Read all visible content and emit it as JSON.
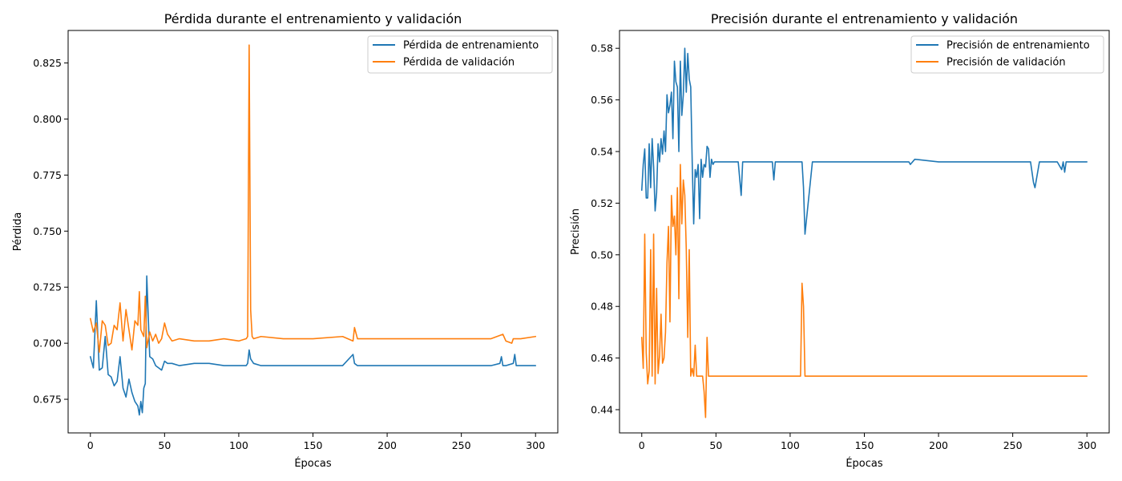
{
  "chart_data": [
    {
      "type": "line",
      "title": "Pérdida durante el entrenamiento y validación",
      "xlabel": "Épocas",
      "ylabel": "Pérdida",
      "xlim": [
        -15,
        315
      ],
      "ylim": [
        0.66,
        0.8395
      ],
      "xticks": [
        0,
        50,
        100,
        150,
        200,
        250,
        300
      ],
      "yticks": [
        0.675,
        0.7,
        0.725,
        0.75,
        0.775,
        0.8,
        0.825
      ],
      "ytick_labels": [
        "0.675",
        "0.700",
        "0.725",
        "0.750",
        "0.775",
        "0.800",
        "0.825"
      ],
      "legend_position": "upper right",
      "series": [
        {
          "name": "Pérdida de entrenamiento",
          "color": "#1f77b4",
          "x": [
            0,
            2,
            4,
            6,
            8,
            10,
            12,
            14,
            16,
            18,
            20,
            22,
            24,
            26,
            28,
            30,
            32,
            33,
            34,
            35,
            36,
            37,
            38,
            40,
            42,
            44,
            46,
            48,
            50,
            52,
            55,
            60,
            70,
            80,
            90,
            100,
            105,
            106,
            107,
            108,
            110,
            115,
            130,
            150,
            170,
            177,
            178,
            180,
            200,
            250,
            260,
            270,
            276,
            277,
            278,
            280,
            285,
            286,
            287,
            290,
            300
          ],
          "y": [
            0.694,
            0.689,
            0.719,
            0.688,
            0.689,
            0.703,
            0.686,
            0.685,
            0.681,
            0.683,
            0.694,
            0.68,
            0.676,
            0.684,
            0.678,
            0.674,
            0.672,
            0.668,
            0.674,
            0.669,
            0.68,
            0.682,
            0.73,
            0.694,
            0.693,
            0.69,
            0.689,
            0.688,
            0.692,
            0.691,
            0.691,
            0.69,
            0.691,
            0.691,
            0.69,
            0.69,
            0.69,
            0.691,
            0.697,
            0.693,
            0.691,
            0.69,
            0.69,
            0.69,
            0.69,
            0.695,
            0.691,
            0.69,
            0.69,
            0.69,
            0.69,
            0.69,
            0.691,
            0.694,
            0.69,
            0.69,
            0.691,
            0.695,
            0.69,
            0.69,
            0.69
          ]
        },
        {
          "name": "Pérdida de validación",
          "color": "#ff7f0e",
          "x": [
            0,
            2,
            4,
            6,
            8,
            10,
            12,
            14,
            16,
            18,
            20,
            22,
            24,
            26,
            28,
            30,
            32,
            33,
            34,
            36,
            37,
            38,
            40,
            42,
            44,
            46,
            48,
            50,
            52,
            55,
            60,
            70,
            80,
            90,
            100,
            105,
            106,
            107,
            108,
            109,
            110,
            115,
            130,
            150,
            170,
            177,
            178,
            180,
            200,
            250,
            270,
            278,
            280,
            284,
            285,
            290,
            300
          ],
          "y": [
            0.711,
            0.705,
            0.709,
            0.696,
            0.71,
            0.708,
            0.699,
            0.7,
            0.708,
            0.706,
            0.718,
            0.701,
            0.715,
            0.706,
            0.697,
            0.71,
            0.708,
            0.723,
            0.706,
            0.703,
            0.721,
            0.698,
            0.705,
            0.701,
            0.704,
            0.7,
            0.702,
            0.709,
            0.704,
            0.701,
            0.702,
            0.701,
            0.701,
            0.702,
            0.701,
            0.702,
            0.703,
            0.833,
            0.715,
            0.703,
            0.702,
            0.703,
            0.702,
            0.702,
            0.703,
            0.701,
            0.707,
            0.702,
            0.702,
            0.702,
            0.702,
            0.704,
            0.701,
            0.7,
            0.702,
            0.702,
            0.703
          ]
        }
      ]
    },
    {
      "type": "line",
      "title": "Precisión durante el entrenamiento y validación",
      "xlabel": "Épocas",
      "ylabel": "Precisión",
      "xlim": [
        -15,
        315
      ],
      "ylim": [
        0.431,
        0.5869
      ],
      "xticks": [
        0,
        50,
        100,
        150,
        200,
        250,
        300
      ],
      "yticks": [
        0.44,
        0.46,
        0.48,
        0.5,
        0.52,
        0.54,
        0.56,
        0.58
      ],
      "ytick_labels": [
        "0.44",
        "0.46",
        "0.48",
        "0.50",
        "0.52",
        "0.54",
        "0.56",
        "0.58"
      ],
      "legend_position": "upper right",
      "series": [
        {
          "name": "Precisión de entrenamiento",
          "color": "#1f77b4",
          "x": [
            0,
            1,
            2,
            3,
            4,
            5,
            6,
            7,
            8,
            9,
            10,
            11,
            12,
            13,
            14,
            15,
            16,
            17,
            18,
            19,
            20,
            21,
            22,
            23,
            24,
            25,
            26,
            27,
            28,
            29,
            30,
            31,
            32,
            33,
            34,
            35,
            36,
            37,
            38,
            39,
            40,
            41,
            42,
            43,
            44,
            45,
            46,
            47,
            48,
            49,
            50,
            52,
            55,
            60,
            65,
            67,
            68,
            70,
            80,
            88,
            89,
            90,
            100,
            108,
            109,
            110,
            115,
            150,
            180,
            181,
            184,
            200,
            250,
            262,
            264,
            265,
            268,
            280,
            283,
            284,
            285,
            286,
            290,
            300
          ],
          "y": [
            0.525,
            0.535,
            0.541,
            0.522,
            0.522,
            0.543,
            0.526,
            0.545,
            0.534,
            0.517,
            0.524,
            0.543,
            0.536,
            0.545,
            0.539,
            0.548,
            0.54,
            0.562,
            0.555,
            0.558,
            0.563,
            0.545,
            0.575,
            0.567,
            0.565,
            0.54,
            0.575,
            0.554,
            0.562,
            0.58,
            0.563,
            0.578,
            0.568,
            0.565,
            0.536,
            0.512,
            0.533,
            0.53,
            0.535,
            0.514,
            0.537,
            0.53,
            0.535,
            0.534,
            0.542,
            0.541,
            0.53,
            0.537,
            0.535,
            0.536,
            0.536,
            0.536,
            0.536,
            0.536,
            0.536,
            0.523,
            0.536,
            0.536,
            0.536,
            0.536,
            0.529,
            0.536,
            0.536,
            0.536,
            0.526,
            0.508,
            0.536,
            0.536,
            0.536,
            0.535,
            0.537,
            0.536,
            0.536,
            0.536,
            0.528,
            0.526,
            0.536,
            0.536,
            0.533,
            0.536,
            0.532,
            0.536,
            0.536,
            0.536
          ]
        },
        {
          "name": "Precisión de validación",
          "color": "#ff7f0e",
          "x": [
            0,
            1,
            2,
            3,
            4,
            5,
            6,
            7,
            8,
            9,
            10,
            11,
            12,
            13,
            14,
            15,
            16,
            17,
            18,
            19,
            20,
            21,
            22,
            23,
            24,
            25,
            26,
            27,
            28,
            29,
            30,
            31,
            32,
            33,
            34,
            35,
            36,
            37,
            38,
            39,
            40,
            41,
            42,
            43,
            44,
            45,
            46,
            47,
            48,
            49,
            50,
            51,
            55,
            60,
            70,
            80,
            100,
            107,
            108,
            109,
            110,
            115,
            150,
            200,
            250,
            300
          ],
          "y": [
            0.468,
            0.456,
            0.508,
            0.462,
            0.45,
            0.455,
            0.502,
            0.453,
            0.508,
            0.45,
            0.487,
            0.454,
            0.461,
            0.477,
            0.458,
            0.46,
            0.47,
            0.497,
            0.511,
            0.474,
            0.523,
            0.511,
            0.515,
            0.5,
            0.526,
            0.483,
            0.535,
            0.512,
            0.529,
            0.523,
            0.502,
            0.468,
            0.502,
            0.453,
            0.456,
            0.453,
            0.465,
            0.453,
            0.453,
            0.453,
            0.453,
            0.453,
            0.447,
            0.437,
            0.468,
            0.453,
            0.453,
            0.453,
            0.453,
            0.453,
            0.453,
            0.453,
            0.453,
            0.453,
            0.453,
            0.453,
            0.453,
            0.453,
            0.489,
            0.48,
            0.453,
            0.453,
            0.453,
            0.453,
            0.453,
            0.453
          ]
        }
      ]
    }
  ]
}
